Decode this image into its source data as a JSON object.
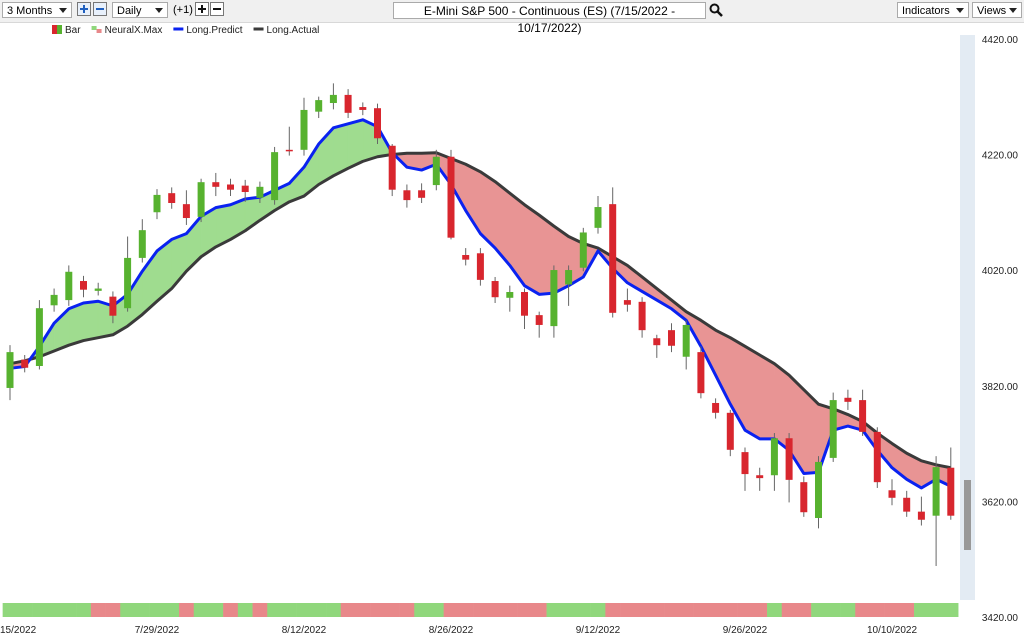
{
  "toolbar": {
    "range": "3 Months",
    "interval": "Daily",
    "offset": "(+1)",
    "indicators": "Indicators",
    "views": "Views"
  },
  "chart_data": {
    "type": "candlestick",
    "title": "E-Mini S&P 500 - Continuous (ES) (7/15/2022 - 10/17/2022)",
    "categories": [
      "15/2022",
      null,
      null,
      null,
      null,
      null,
      null,
      null,
      null,
      null,
      "7/29/2022",
      null,
      null,
      null,
      null,
      null,
      null,
      null,
      null,
      null,
      "8/12/2022",
      null,
      null,
      null,
      null,
      null,
      null,
      null,
      null,
      null,
      "8/26/2022",
      null,
      null,
      null,
      null,
      null,
      null,
      null,
      null,
      null,
      "9/12/2022",
      null,
      null,
      null,
      null,
      null,
      null,
      null,
      null,
      null,
      "9/26/2022",
      null,
      null,
      null,
      null,
      null,
      null,
      null,
      null,
      null,
      "10/10/2022",
      null,
      null,
      null,
      null
    ],
    "ylim": [
      3420,
      4420
    ],
    "yticks": [
      {
        "value": 3420,
        "label": "3420.00"
      },
      {
        "value": 3620,
        "label": "3620.00"
      },
      {
        "value": 3820,
        "label": "3820.00"
      },
      {
        "value": 4020,
        "label": "4020.00"
      },
      {
        "value": 4220,
        "label": "4220.00"
      },
      {
        "value": 4420,
        "label": "4420.00"
      }
    ],
    "candles": {
      "name": "Bar",
      "up_color": "#57b22f",
      "down_color": "#d8262e",
      "open": [
        3818,
        3867,
        3856,
        3961,
        3970,
        4003,
        3986,
        3976,
        3956,
        4043,
        4122,
        4155,
        4136,
        4114,
        4174,
        4170,
        4168,
        4147,
        4143,
        4230,
        4230,
        4296,
        4311,
        4325,
        4304,
        4302,
        4237,
        4160,
        4160,
        4169,
        4218,
        4048,
        4051,
        4003,
        3974,
        3984,
        3944,
        3925,
        3997,
        4026,
        4095,
        4136,
        3970,
        3967,
        3904,
        3918,
        3872,
        3880,
        3792,
        3775,
        3707,
        3667,
        3667,
        3731,
        3655,
        3593,
        3697,
        3801,
        3797,
        3742,
        3641,
        3628,
        3604,
        3597,
        3680
      ],
      "high": [
        3892,
        3875,
        3970,
        3990,
        4030,
        4012,
        4000,
        3985,
        4080,
        4110,
        4162,
        4165,
        4160,
        4180,
        4190,
        4180,
        4178,
        4175,
        4235,
        4270,
        4320,
        4322,
        4345,
        4335,
        4312,
        4310,
        4240,
        4170,
        4172,
        4230,
        4230,
        4060,
        4060,
        4010,
        3995,
        3990,
        3950,
        4030,
        4030,
        4095,
        4150,
        4165,
        3990,
        3975,
        3910,
        3930,
        3935,
        3890,
        3800,
        3780,
        3715,
        3680,
        3740,
        3740,
        3665,
        3700,
        3810,
        3815,
        3815,
        3750,
        3660,
        3640,
        3630,
        3700,
        3715
      ],
      "low": [
        3797,
        3845,
        3850,
        3950,
        3960,
        3975,
        3978,
        3930,
        3950,
        4035,
        4110,
        4128,
        4100,
        4105,
        4150,
        4150,
        4140,
        4138,
        4135,
        4220,
        4220,
        4285,
        4300,
        4285,
        4290,
        4240,
        4150,
        4130,
        4138,
        4160,
        4075,
        4030,
        3995,
        3965,
        3950,
        3920,
        3905,
        3905,
        3960,
        4020,
        4085,
        3940,
        3950,
        3905,
        3870,
        3880,
        3850,
        3800,
        3765,
        3700,
        3640,
        3640,
        3640,
        3620,
        3595,
        3575,
        3690,
        3780,
        3735,
        3645,
        3615,
        3595,
        3580,
        3510,
        3590
      ],
      "close": [
        3880,
        3853,
        3956,
        3979,
        4019,
        3988,
        3990,
        3943,
        4043,
        4091,
        4152,
        4138,
        4112,
        4174,
        4166,
        4161,
        4157,
        4166,
        4226,
        4228,
        4299,
        4316,
        4325,
        4294,
        4299,
        4250,
        4161,
        4143,
        4147,
        4218,
        4078,
        4040,
        4005,
        3975,
        3984,
        3943,
        3927,
        4022,
        4022,
        4087,
        4131,
        3948,
        3962,
        3918,
        3892,
        3891,
        3927,
        3809,
        3775,
        3711,
        3669,
        3662,
        3731,
        3659,
        3603,
        3690,
        3797,
        3794,
        3742,
        3655,
        3628,
        3604,
        3590,
        3681,
        3597
      ]
    },
    "lines": [
      {
        "name": "Long.Predict",
        "color": "#0a22f0",
        "values": [
          3852,
          3855,
          3890,
          3930,
          3955,
          3965,
          3968,
          3960,
          3980,
          4020,
          4055,
          4075,
          4085,
          4115,
          4130,
          4135,
          4145,
          4148,
          4160,
          4172,
          4200,
          4240,
          4268,
          4275,
          4282,
          4270,
          4225,
          4200,
          4195,
          4205,
          4170,
          4125,
          4085,
          4060,
          4030,
          3995,
          3980,
          3982,
          3995,
          4010,
          4055,
          4025,
          4000,
          3985,
          3970,
          3955,
          3935,
          3890,
          3840,
          3790,
          3745,
          3730,
          3730,
          3710,
          3670,
          3672,
          3745,
          3752,
          3745,
          3710,
          3680,
          3660,
          3645,
          3660,
          3648
        ]
      },
      {
        "name": "Long.Actual",
        "color": "#3a3a3a",
        "values": [
          3860,
          3865,
          3872,
          3882,
          3892,
          3900,
          3905,
          3910,
          3925,
          3945,
          3968,
          3990,
          4020,
          4045,
          4062,
          4075,
          4090,
          4108,
          4125,
          4140,
          4150,
          4170,
          4185,
          4198,
          4210,
          4218,
          4222,
          4224,
          4224,
          4225,
          4215,
          4205,
          4192,
          4175,
          4155,
          4135,
          4117,
          4098,
          4080,
          4068,
          4060,
          4045,
          4030,
          4010,
          3990,
          3970,
          3950,
          3935,
          3918,
          3905,
          3890,
          3875,
          3860,
          3840,
          3815,
          3790,
          3782,
          3772,
          3760,
          3740,
          3722,
          3705,
          3692,
          3685,
          3680
        ]
      }
    ],
    "fill_colors": {
      "above": "#9fdc8f",
      "below": "#e89494"
    },
    "signal": {
      "name": "NeuralX.Max",
      "colors": {
        "up": "#90d77c",
        "down": "#e8888a"
      },
      "values": [
        "up",
        "up",
        "up",
        "up",
        "up",
        "up",
        "down",
        "down",
        "up",
        "up",
        "up",
        "up",
        "down",
        "up",
        "up",
        "down",
        "up",
        "down",
        "up",
        "up",
        "up",
        "up",
        "up",
        "down",
        "down",
        "down",
        "down",
        "down",
        "up",
        "up",
        "down",
        "down",
        "down",
        "down",
        "down",
        "down",
        "down",
        "up",
        "up",
        "up",
        "up",
        "down",
        "down",
        "down",
        "down",
        "down",
        "down",
        "down",
        "down",
        "down",
        "down",
        "down",
        "up",
        "down",
        "down",
        "up",
        "up",
        "up",
        "down",
        "down",
        "down",
        "down",
        "up",
        "up",
        "up"
      ]
    }
  }
}
